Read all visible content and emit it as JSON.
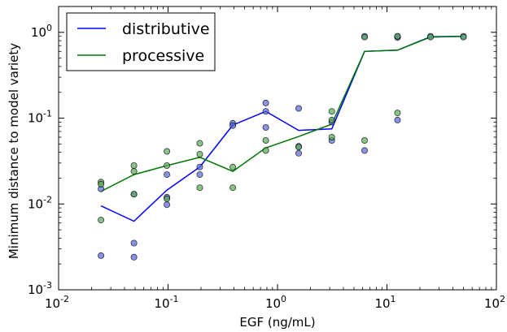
{
  "chart_data": {
    "type": "scatter",
    "xlabel": "EGF (ng/mL)",
    "ylabel": "Minimum distance to model variety",
    "xscale": "log",
    "yscale": "log",
    "xlim": [
      0.01,
      100
    ],
    "ylim": [
      0.001,
      2
    ],
    "x_ticks": [
      {
        "base": "10",
        "exp": "-2",
        "value": 0.01
      },
      {
        "base": "10",
        "exp": "-1",
        "value": 0.1
      },
      {
        "base": "10",
        "exp": "0",
        "value": 1
      },
      {
        "base": "10",
        "exp": "1",
        "value": 10
      },
      {
        "base": "10",
        "exp": "2",
        "value": 100
      }
    ],
    "y_ticks": [
      {
        "base": "10",
        "exp": "-3",
        "value": 0.001
      },
      {
        "base": "10",
        "exp": "-2",
        "value": 0.01
      },
      {
        "base": "10",
        "exp": "-1",
        "value": 0.1
      },
      {
        "base": "10",
        "exp": "0",
        "value": 1
      }
    ],
    "legend_position": "top-left",
    "grid": false,
    "series": [
      {
        "name": "distributive",
        "color": "#0000ff",
        "marker_color": "#5566dd",
        "line_x": [
          0.0244,
          0.0488,
          0.0977,
          0.195,
          0.391,
          0.781,
          1.56,
          3.13,
          6.25,
          12.5,
          25,
          50
        ],
        "line_y": [
          0.0095,
          0.0063,
          0.0145,
          0.027,
          0.083,
          0.12,
          0.072,
          0.075,
          0.6,
          0.62,
          0.89,
          0.9
        ],
        "points": [
          [
            0.0244,
            0.015
          ],
          [
            0.0244,
            0.0025
          ],
          [
            0.0488,
            0.013
          ],
          [
            0.0488,
            0.0035
          ],
          [
            0.0488,
            0.0024
          ],
          [
            0.0977,
            0.022
          ],
          [
            0.0977,
            0.012
          ],
          [
            0.0977,
            0.0098
          ],
          [
            0.195,
            0.027
          ],
          [
            0.195,
            0.022
          ],
          [
            0.391,
            0.087
          ],
          [
            0.391,
            0.082
          ],
          [
            0.781,
            0.15
          ],
          [
            0.781,
            0.12
          ],
          [
            0.781,
            0.078
          ],
          [
            1.56,
            0.13
          ],
          [
            1.56,
            0.047
          ],
          [
            1.56,
            0.039
          ],
          [
            3.13,
            0.055
          ],
          [
            3.13,
            0.09
          ],
          [
            6.25,
            0.9
          ],
          [
            6.25,
            0.042
          ],
          [
            12.5,
            0.87
          ],
          [
            12.5,
            0.9
          ],
          [
            12.5,
            0.095
          ],
          [
            25,
            0.9
          ],
          [
            50,
            0.9
          ]
        ]
      },
      {
        "name": "processive",
        "color": "#007700",
        "marker_color": "#55aa55",
        "line_x": [
          0.0244,
          0.0488,
          0.0977,
          0.195,
          0.391,
          0.781,
          1.56,
          3.13,
          6.25,
          12.5,
          25,
          50
        ],
        "line_y": [
          0.014,
          0.022,
          0.028,
          0.035,
          0.024,
          0.045,
          0.061,
          0.085,
          0.6,
          0.62,
          0.88,
          0.9
        ],
        "points": [
          [
            0.0244,
            0.018
          ],
          [
            0.0244,
            0.017
          ],
          [
            0.0244,
            0.0065
          ],
          [
            0.0488,
            0.028
          ],
          [
            0.0488,
            0.024
          ],
          [
            0.0488,
            0.013
          ],
          [
            0.0977,
            0.041
          ],
          [
            0.0977,
            0.028
          ],
          [
            0.0977,
            0.0115
          ],
          [
            0.195,
            0.051
          ],
          [
            0.195,
            0.038
          ],
          [
            0.195,
            0.0155
          ],
          [
            0.391,
            0.027
          ],
          [
            0.391,
            0.0155
          ],
          [
            0.781,
            0.055
          ],
          [
            0.781,
            0.042
          ],
          [
            1.56,
            0.046
          ],
          [
            3.13,
            0.12
          ],
          [
            3.13,
            0.095
          ],
          [
            3.13,
            0.06
          ],
          [
            6.25,
            0.88
          ],
          [
            6.25,
            0.055
          ],
          [
            12.5,
            0.9
          ],
          [
            12.5,
            0.115
          ],
          [
            25,
            0.88
          ],
          [
            50,
            0.88
          ]
        ]
      }
    ]
  }
}
